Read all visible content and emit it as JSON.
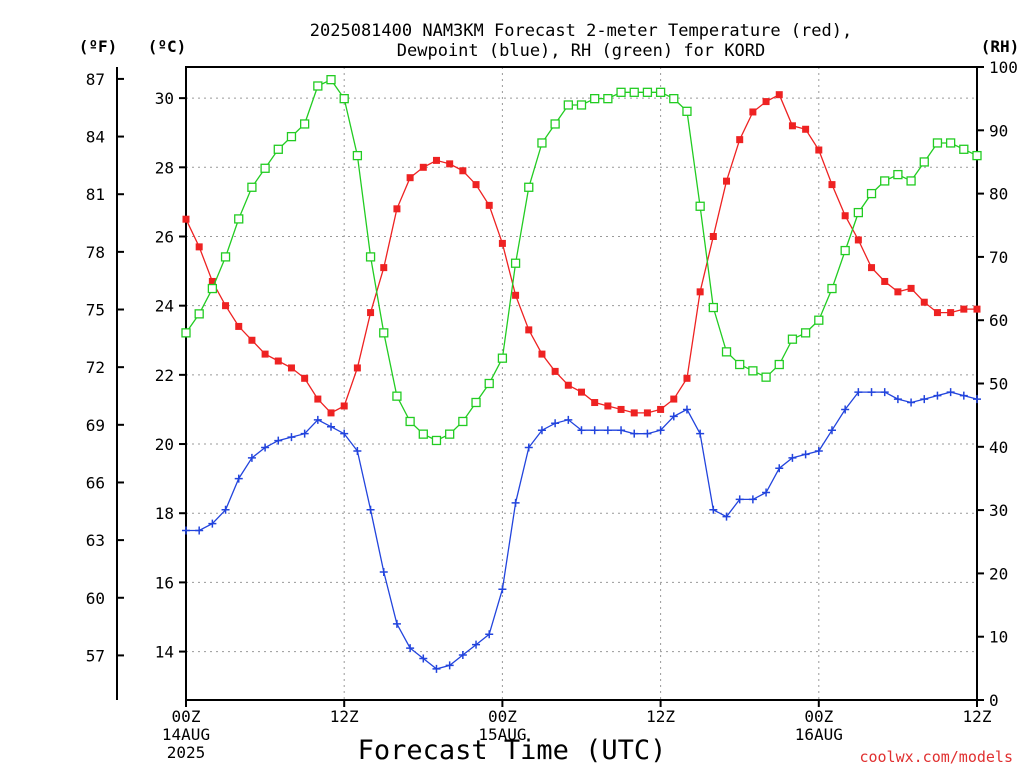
{
  "chart_data": {
    "type": "line",
    "title_lines": [
      "2025081400 NAM3KM Forecast 2-meter Temperature (red),",
      "Dewpoint (blue), RH (green) for KORD"
    ],
    "unit_labels": {
      "fahrenheit": "(ºF)",
      "celsius": "(ºC)",
      "rh": "(RH)"
    },
    "xlabel": "Forecast Time (UTC)",
    "credit": "coolwx.com/models",
    "x_hours_range": [
      0,
      60
    ],
    "y_celsius_range": [
      12.6,
      30.9
    ],
    "y_rh_range": [
      0,
      100
    ],
    "x_ticks": [
      {
        "hour": 0,
        "lines": [
          "00Z",
          "14AUG",
          "2025"
        ]
      },
      {
        "hour": 12,
        "lines": [
          "12Z"
        ]
      },
      {
        "hour": 24,
        "lines": [
          "00Z",
          "15AUG"
        ]
      },
      {
        "hour": 36,
        "lines": [
          "12Z"
        ]
      },
      {
        "hour": 48,
        "lines": [
          "00Z",
          "16AUG"
        ]
      },
      {
        "hour": 60,
        "lines": [
          "12Z"
        ]
      }
    ],
    "celsius_ticks": [
      "14",
      "16",
      "18",
      "20",
      "22",
      "24",
      "26",
      "28",
      "30"
    ],
    "fahrenheit_ticks": [
      "57",
      "60",
      "63",
      "66",
      "69",
      "72",
      "75",
      "78",
      "81",
      "84",
      "87"
    ],
    "rh_ticks": [
      "0",
      "10",
      "20",
      "30",
      "40",
      "50",
      "60",
      "70",
      "80",
      "90",
      "100"
    ],
    "hours": [
      0,
      1,
      2,
      3,
      4,
      5,
      6,
      7,
      8,
      9,
      10,
      11,
      12,
      13,
      14,
      15,
      16,
      17,
      18,
      19,
      20,
      21,
      22,
      23,
      24,
      25,
      26,
      27,
      28,
      29,
      30,
      31,
      32,
      33,
      34,
      35,
      36,
      37,
      38,
      39,
      40,
      41,
      42,
      43,
      44,
      45,
      46,
      47,
      48,
      49,
      50,
      51,
      52,
      53,
      54,
      55,
      56,
      57,
      58,
      59,
      60
    ],
    "series": [
      {
        "name": "Temperature",
        "unit": "C",
        "color": "#ee2222",
        "marker": "filled-square",
        "values": [
          26.5,
          25.7,
          24.7,
          24.0,
          23.4,
          23.0,
          22.6,
          22.4,
          22.2,
          21.9,
          21.3,
          20.9,
          21.1,
          22.2,
          23.8,
          25.1,
          26.8,
          27.7,
          28.0,
          28.2,
          28.1,
          27.9,
          27.5,
          26.9,
          25.8,
          24.3,
          23.3,
          22.6,
          22.1,
          21.7,
          21.5,
          21.2,
          21.1,
          21.0,
          20.9,
          20.9,
          21.0,
          21.3,
          21.9,
          24.4,
          26.0,
          27.6,
          28.8,
          29.6,
          29.9,
          30.1,
          29.2,
          29.1,
          28.5,
          27.5,
          26.6,
          25.9,
          25.1,
          24.7,
          24.4,
          24.5,
          24.1,
          23.8,
          23.8,
          23.9,
          23.9
        ]
      },
      {
        "name": "Dewpoint",
        "unit": "C",
        "color": "#2244dd",
        "marker": "plus",
        "values": [
          17.5,
          17.5,
          17.7,
          18.1,
          19.0,
          19.6,
          19.9,
          20.1,
          20.2,
          20.3,
          20.7,
          20.5,
          20.3,
          19.8,
          18.1,
          16.3,
          14.8,
          14.1,
          13.8,
          13.5,
          13.6,
          13.9,
          14.2,
          14.5,
          15.8,
          18.3,
          19.9,
          20.4,
          20.6,
          20.7,
          20.4,
          20.4,
          20.4,
          20.4,
          20.3,
          20.3,
          20.4,
          20.8,
          21.0,
          20.3,
          18.1,
          17.9,
          18.4,
          18.4,
          18.6,
          19.3,
          19.6,
          19.7,
          19.8,
          20.4,
          21.0,
          21.5,
          21.5,
          21.5,
          21.3,
          21.2,
          21.3,
          21.4,
          21.5,
          21.4,
          21.3
        ]
      },
      {
        "name": "RH",
        "unit": "%",
        "color": "#22cc22",
        "marker": "open-square",
        "values": [
          58,
          61,
          65,
          70,
          76,
          81,
          84,
          87,
          89,
          91,
          97,
          98,
          95,
          86,
          70,
          58,
          48,
          44,
          42,
          41,
          42,
          44,
          47,
          50,
          54,
          69,
          81,
          88,
          91,
          94,
          94,
          95,
          95,
          96,
          96,
          96,
          96,
          95,
          93,
          78,
          62,
          55,
          53,
          52,
          51,
          53,
          57,
          58,
          60,
          65,
          71,
          77,
          80,
          82,
          83,
          82,
          85,
          88,
          88,
          87,
          86
        ]
      }
    ]
  }
}
